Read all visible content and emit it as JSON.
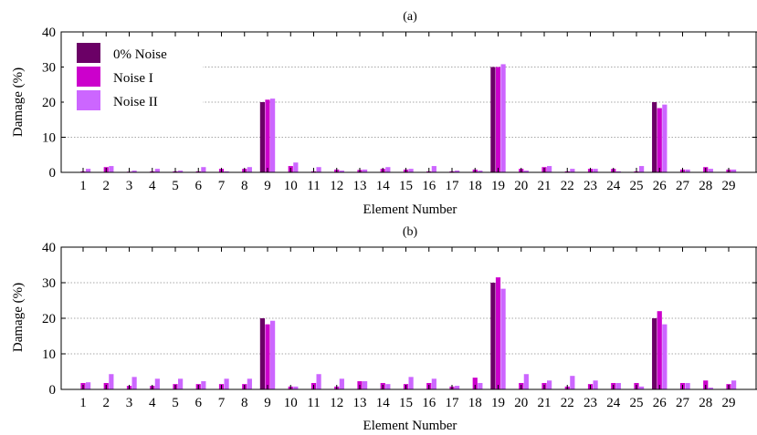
{
  "colors": {
    "series0": "#6b0066",
    "series1": "#cc00cc",
    "series2": "#cc66ff",
    "axis": "#000000",
    "grid": "#8a8a8a"
  },
  "chart_data": [
    {
      "type": "bar",
      "title": "(a)",
      "xlabel": "Element Number",
      "ylabel": "Damage (%)",
      "ylim": [
        0,
        40
      ],
      "yticks": [
        "0",
        "10",
        "20",
        "30",
        "40"
      ],
      "grid": "horizontal dotted",
      "legend_position": "top-left",
      "categories": [
        "1",
        "2",
        "3",
        "4",
        "5",
        "6",
        "7",
        "8",
        "9",
        "10",
        "11",
        "12",
        "13",
        "14",
        "15",
        "16",
        "17",
        "18",
        "19",
        "20",
        "21",
        "22",
        "23",
        "24",
        "25",
        "26",
        "27",
        "28",
        "29"
      ],
      "series": [
        {
          "name": "0% Noise",
          "values": [
            0,
            0,
            0,
            0,
            0,
            0,
            0,
            0,
            20,
            0,
            0,
            0,
            0,
            0,
            0,
            0,
            0,
            0,
            30,
            0,
            0,
            0,
            0,
            0,
            0,
            20,
            0,
            0,
            0
          ]
        },
        {
          "name": "Noise I",
          "values": [
            0.3,
            1.5,
            0.2,
            0.3,
            0.3,
            0.3,
            1.0,
            1.0,
            20.7,
            1.8,
            0.3,
            0.8,
            0.7,
            1.0,
            0.8,
            0.3,
            0.3,
            0.8,
            30.0,
            1.0,
            1.5,
            0.3,
            1.0,
            1.0,
            0.3,
            18.3,
            0.8,
            1.5,
            0.8
          ]
        },
        {
          "name": "Noise II",
          "values": [
            1.0,
            1.8,
            0.5,
            1.0,
            0.5,
            1.5,
            0.3,
            1.5,
            21.0,
            2.8,
            1.5,
            0.5,
            0.8,
            1.5,
            1.0,
            1.8,
            0.5,
            0.5,
            30.8,
            0.5,
            1.8,
            1.0,
            1.0,
            0.3,
            1.8,
            19.3,
            0.8,
            1.0,
            0.8
          ]
        }
      ]
    },
    {
      "type": "bar",
      "title": "(b)",
      "xlabel": "Element Number",
      "ylabel": "Damage (%)",
      "ylim": [
        0,
        40
      ],
      "yticks": [
        "0",
        "10",
        "20",
        "30",
        "40"
      ],
      "grid": "horizontal dotted",
      "categories": [
        "1",
        "2",
        "3",
        "4",
        "5",
        "6",
        "7",
        "8",
        "9",
        "10",
        "11",
        "12",
        "13",
        "14",
        "15",
        "16",
        "17",
        "18",
        "19",
        "20",
        "21",
        "22",
        "23",
        "24",
        "25",
        "26",
        "27",
        "28",
        "29"
      ],
      "series": [
        {
          "name": "0% Noise",
          "values": [
            0,
            0,
            0,
            0,
            0,
            0,
            0,
            0,
            20,
            0,
            0,
            0,
            0,
            0,
            0,
            0,
            0,
            0,
            30,
            0,
            0,
            0,
            0,
            0,
            0,
            20,
            0,
            0,
            0
          ]
        },
        {
          "name": "Noise I",
          "values": [
            1.8,
            1.8,
            1.0,
            1.0,
            1.5,
            1.5,
            1.5,
            1.5,
            18.3,
            0.8,
            1.8,
            0.8,
            2.3,
            1.8,
            1.5,
            1.8,
            0.8,
            3.3,
            31.5,
            1.8,
            1.8,
            0.8,
            1.5,
            1.8,
            1.8,
            22.0,
            1.8,
            2.5,
            1.5
          ]
        },
        {
          "name": "Noise II",
          "values": [
            2.0,
            4.3,
            3.5,
            3.0,
            3.0,
            2.3,
            3.0,
            3.0,
            19.3,
            0.8,
            4.3,
            3.0,
            2.3,
            1.5,
            3.5,
            3.0,
            1.0,
            1.8,
            28.3,
            4.3,
            2.5,
            3.8,
            2.5,
            1.8,
            0.8,
            18.3,
            1.8,
            0.5,
            2.5
          ]
        }
      ]
    }
  ]
}
